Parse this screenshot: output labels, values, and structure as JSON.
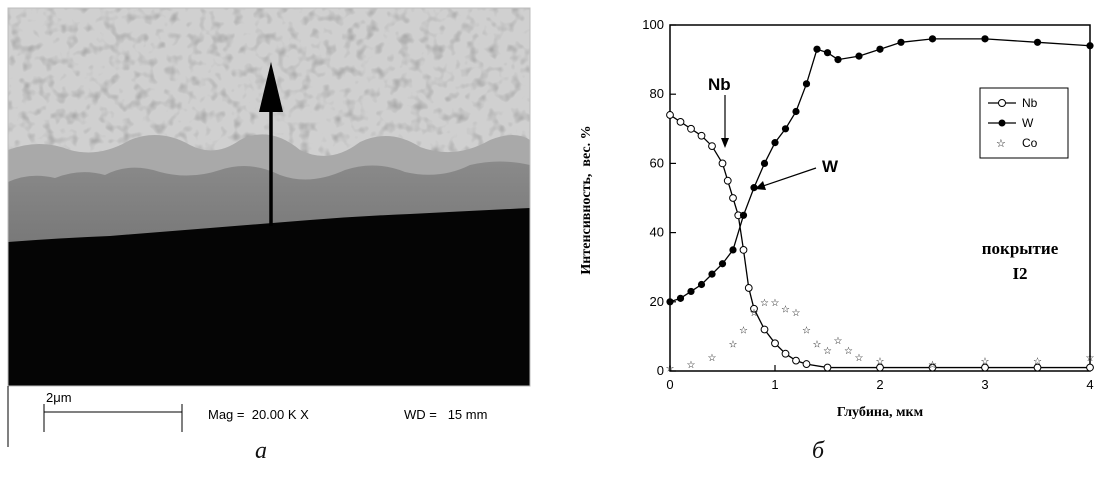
{
  "panel_a": {
    "caption": "а",
    "scale_bar_label": "2μm",
    "mag": "Mag =  20.00 K X",
    "wd": "WD =   15 mm"
  },
  "panel_b": {
    "caption": "б",
    "annotations": {
      "nb": "Nb",
      "w": "W",
      "coating_line1": "покрытие",
      "coating_line2": "I2"
    },
    "legend_labels": [
      "Nb",
      "W",
      "Co"
    ]
  },
  "chart_data": {
    "type": "scatter",
    "xlabel": "Глубина, мкм",
    "ylabel": "Интенсивность,  вес. %",
    "xlim": [
      0,
      4
    ],
    "ylim": [
      0,
      100
    ],
    "xticks": [
      "0",
      "1",
      "2",
      "3",
      "4"
    ],
    "yticks": [
      "0",
      "20",
      "40",
      "60",
      "80",
      "100"
    ],
    "legend_position": "top-right",
    "series": [
      {
        "name": "Nb",
        "marker": "open-circle",
        "line": true,
        "color": "#000000",
        "x": [
          0,
          0.1,
          0.2,
          0.3,
          0.4,
          0.5,
          0.55,
          0.6,
          0.65,
          0.7,
          0.75,
          0.8,
          0.9,
          1.0,
          1.1,
          1.2,
          1.3,
          1.5,
          2.0,
          2.5,
          3.0,
          3.5,
          4.0
        ],
        "y": [
          74,
          72,
          70,
          68,
          65,
          60,
          55,
          50,
          45,
          35,
          24,
          18,
          12,
          8,
          5,
          3,
          2,
          1,
          1,
          1,
          1,
          1,
          1
        ]
      },
      {
        "name": "W",
        "marker": "filled-circle",
        "line": true,
        "color": "#000000",
        "x": [
          0,
          0.1,
          0.2,
          0.3,
          0.4,
          0.5,
          0.6,
          0.7,
          0.8,
          0.9,
          1.0,
          1.1,
          1.2,
          1.3,
          1.4,
          1.5,
          1.6,
          1.8,
          2.0,
          2.2,
          2.5,
          3.0,
          3.5,
          4.0
        ],
        "y": [
          20,
          21,
          23,
          25,
          28,
          31,
          35,
          45,
          53,
          60,
          66,
          70,
          75,
          83,
          93,
          92,
          90,
          91,
          93,
          95,
          96,
          96,
          95,
          94
        ]
      },
      {
        "name": "Co",
        "marker": "star",
        "line": false,
        "color": "#000000",
        "x": [
          0,
          0.2,
          0.4,
          0.6,
          0.7,
          0.8,
          0.9,
          1.0,
          1.1,
          1.2,
          1.3,
          1.4,
          1.5,
          1.6,
          1.7,
          1.8,
          2.0,
          2.5,
          3.0,
          3.5,
          4.0
        ],
        "y": [
          1,
          2,
          4,
          8,
          12,
          17,
          20,
          20,
          18,
          17,
          12,
          8,
          6,
          9,
          6,
          4,
          3,
          2,
          3,
          3,
          4
        ]
      }
    ]
  }
}
